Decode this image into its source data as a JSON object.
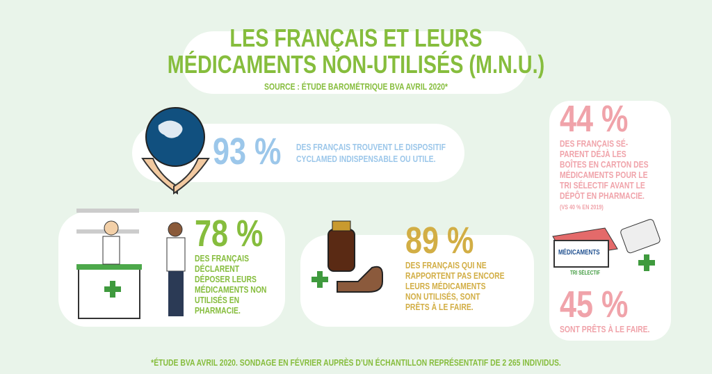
{
  "header": {
    "title_lines": [
      "LES FRANÇAIS ET LEURS",
      "MÉDICAMENTS NON-UTILISÉS (M.N.U.)"
    ],
    "source": "SOURCE : ÉTUDE BAROMÉTRIQUE BVA AVRIL 2020*"
  },
  "stats": [
    {
      "figure": "93 %",
      "lines": [
        "DES FRANÇAIS TROUVENT LE DISPOSITIF",
        "CYCLAMED INDISPENSABLE OU UTILE."
      ]
    },
    {
      "figure": "78 %",
      "lines": [
        "DES FRANÇAIS",
        "DÉCLARENT",
        "DÉPOSER LEURS",
        "MÉDICAMENTS NON",
        "UTILISÉS EN",
        "PHARMACIE."
      ]
    },
    {
      "figure": "89 %",
      "lines": [
        "DES FRANÇAIS QUI NE",
        "RAPPORTENT PAS ENCORE",
        "LEURS MÉDICAMENTS",
        "NON UTILISÉS, SONT",
        "PRÊTS À LE FAIRE."
      ]
    },
    {
      "figure": "44 %",
      "lines": [
        "DES FRANÇAIS SÉ-",
        "PARENT DÉJÀ LES",
        "BOÎTES EN CARTON DES",
        "MÉDICAMENTS POUR LE",
        "TRI SÉLECTIF AVANT LE",
        "DÉPÔT EN PHARMACIE."
      ],
      "note": "(VS 40 % EN 2019)"
    },
    {
      "figure": "45 %",
      "lines": [
        "SONT PRÊTS À LE FAIRE."
      ]
    }
  ],
  "illustration": {
    "box_label": "MÉDICAMENTS",
    "box_caption": "TRI SÉLECTIF"
  },
  "footnote": "*ÉTUDE BVA AVRIL 2020. SONDAGE EN FÉVRIER AUPRÈS D’UN ÉCHANTILLON REPRÉSENTATIF DE 2 265 INDIVIDUS."
}
